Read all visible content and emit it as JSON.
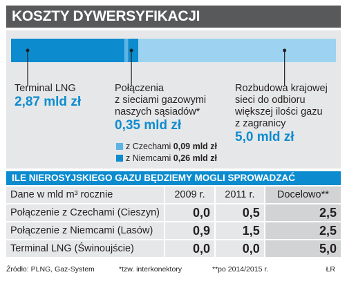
{
  "title": "KOSZTY DYWERSYFIKACJI",
  "colors": {
    "accent": "#0c8ccf",
    "accent_light": "#5cb4e6",
    "bar_rest": "#9dd3f1",
    "panel": "#e6e7e8",
    "title_bg": "#58595b"
  },
  "chart_data": {
    "type": "bar",
    "orientation": "horizontal-stacked",
    "unit": "mld zł",
    "segments": [
      {
        "name": "Terminal LNG",
        "value": 2.87,
        "value_label": "2,87 mld zł"
      },
      {
        "name": "Połączenia z sieciami gazowymi naszych sąsiadów*",
        "value": 0.35,
        "value_label": "0,35 mld zł",
        "breakdown": [
          {
            "name": "z Czechami",
            "value": 0.09,
            "value_label": "0,09 mld zł"
          },
          {
            "name": "z Niemcami",
            "value": 0.26,
            "value_label": "0,26 mld zł"
          }
        ]
      },
      {
        "name": "Rozbudowa krajowej sieci do odbioru większej ilości gazu z zagranicy",
        "value": 5.0,
        "value_label": "5,0 mld zł"
      }
    ]
  },
  "labels": {
    "lng_line1": "Terminal LNG",
    "lng_value": "2,87 mld zł",
    "conn_line1": "Połączenia",
    "conn_line2": "z sieciami gazowymi",
    "conn_line3": "naszych sąsiadów*",
    "conn_value": "0,35 mld zł",
    "legend_cz_label": "z Czechami",
    "legend_cz_value": "0,09 mld zł",
    "legend_de_label": "z Niemcami",
    "legend_de_value": "0,26 mld zł",
    "exp_line1": "Rozbudowa krajowej",
    "exp_line2": "sieci do odbioru",
    "exp_line3": "większej ilości gazu",
    "exp_line4": "z zagranicy",
    "exp_value": "5,0 mld zł"
  },
  "table": {
    "title": "ILE NIEROSYJSKIEGO GAZU BĘDZIEMY MOGLI SPROWADZAĆ",
    "header": [
      "Dane w mld m³ rocznie",
      "2009 r.",
      "2011 r.",
      "Docelowo**"
    ],
    "rows": [
      [
        "Połączenie z Czechami (Cieszyn)",
        "0,0",
        "0,5",
        "2,5"
      ],
      [
        "Połączenie z Niemcami (Lasów)",
        "0,9",
        "1,5",
        "2,5"
      ],
      [
        "Terminal LNG (Świnoujście)",
        "0,0",
        "0,0",
        "5,0"
      ]
    ]
  },
  "footnotes": {
    "source": "Źródło: PLNG, Gaz-System",
    "note1": "*tzw. interkonektory",
    "note2": "**po 2014/2015 r.",
    "credit": "ŁR"
  }
}
